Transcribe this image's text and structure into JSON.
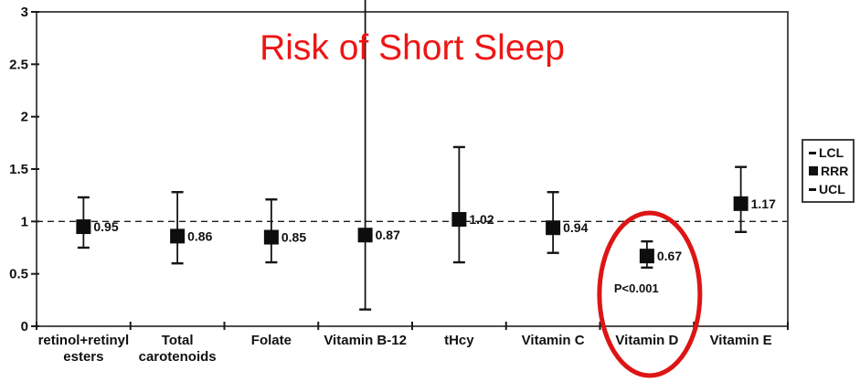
{
  "chart_data": {
    "type": "scatter",
    "title": "Risk of Short Sleep",
    "categories": [
      "retinol+retinyl\nesters",
      "Total\ncarotenoids",
      "Folate",
      "Vitamin B-12",
      "tHcy",
      "Vitamin C",
      "Vitamin D",
      "Vitamin E"
    ],
    "series": [
      {
        "name": "RRR",
        "values": [
          0.95,
          0.86,
          0.85,
          0.87,
          1.02,
          0.94,
          0.67,
          1.17
        ]
      },
      {
        "name": "LCL",
        "values": [
          0.75,
          0.6,
          0.61,
          0.16,
          0.61,
          0.7,
          0.56,
          0.9
        ]
      },
      {
        "name": "UCL",
        "values": [
          1.23,
          1.28,
          1.21,
          null,
          1.71,
          1.28,
          0.81,
          1.52
        ]
      }
    ],
    "point_labels": [
      "0.95",
      "0.86",
      "0.85",
      "0.87",
      "1.02",
      "0.94",
      "0.67",
      "1.17"
    ],
    "ucl_offscale_index": 3,
    "ylim": [
      0,
      3
    ],
    "yticks": [
      "0",
      "0.5",
      "1",
      "1.5",
      "2",
      "2.5",
      "3"
    ],
    "reference_line": 1,
    "annotation": {
      "text": "P<0.001",
      "category_index": 6
    },
    "highlight_ellipse": {
      "category_index": 6,
      "color": "#dd1515"
    },
    "legend": {
      "position": "right-outside",
      "entries": [
        {
          "marker": "dash",
          "label": "LCL"
        },
        {
          "marker": "square",
          "label": "RRR"
        },
        {
          "marker": "dash",
          "label": "UCL"
        }
      ]
    },
    "colors": {
      "title": "#ee1515",
      "marker": "#0d0d0d",
      "errorbar": "#141414",
      "frame": "#4d4d4d",
      "tick": "#1a1a1a",
      "text": "#111111",
      "highlight": "#dd1515",
      "background": "#ffffff"
    },
    "grid": false,
    "xlabel": "",
    "ylabel": ""
  }
}
